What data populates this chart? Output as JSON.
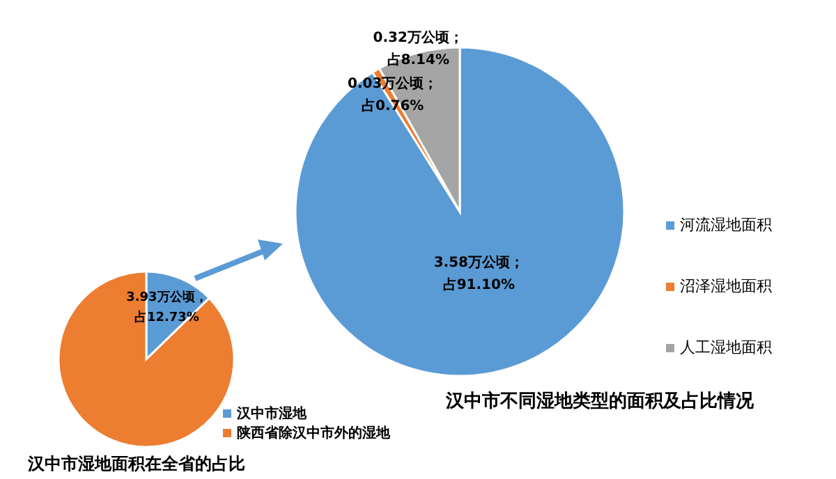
{
  "chart_data": [
    {
      "type": "pie",
      "title": "汉中市湿地面积在全省的占比",
      "categories": [
        "汉中市湿地",
        "陕西省除汉中市外的湿地"
      ],
      "values": [
        12.73,
        87.27
      ],
      "colors": [
        "#5b9bd5",
        "#ed7d31"
      ],
      "value_labels": [
        "3.93万公顷，占12.73%",
        null
      ],
      "legend": "bottom right"
    },
    {
      "type": "pie",
      "title": "汉中市不同湿地类型的面积及占比情况",
      "categories": [
        "河流湿地面积",
        "沼泽湿地面积",
        "人工湿地面积"
      ],
      "values": [
        91.1,
        0.76,
        8.14
      ],
      "colors": [
        "#5b9bd5",
        "#ed7d31",
        "#a5a5a5"
      ],
      "value_labels": [
        "3.58万公顷；占91.10%",
        "0.03万公顷；占0.76%",
        "0.32万公顷；占8.14%"
      ],
      "legend": "right"
    }
  ]
}
